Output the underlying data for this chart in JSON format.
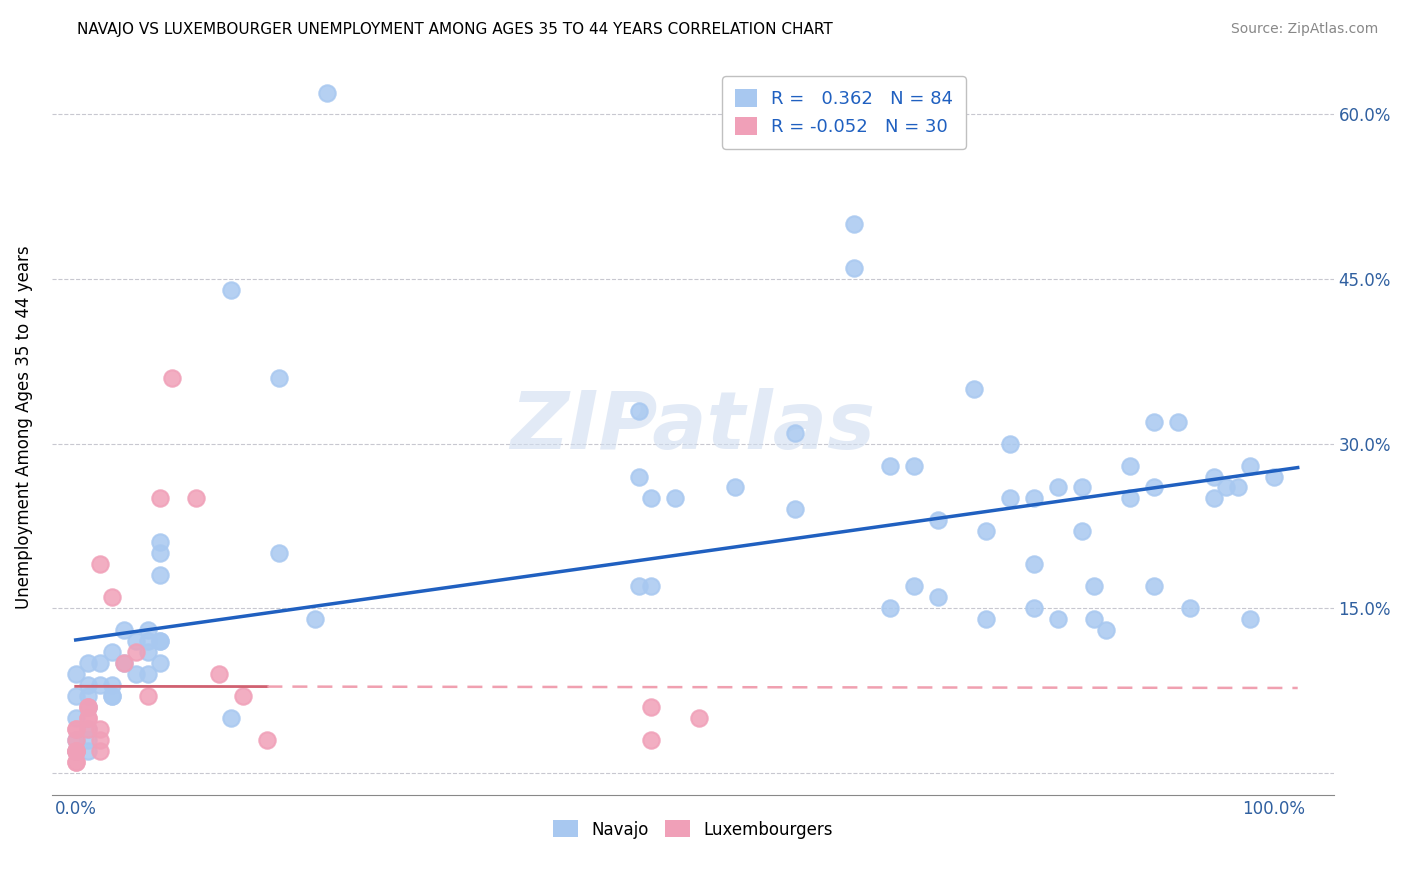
{
  "title": "NAVAJO VS LUXEMBOURGER UNEMPLOYMENT AMONG AGES 35 TO 44 YEARS CORRELATION CHART",
  "source": "Source: ZipAtlas.com",
  "ylabel": "Unemployment Among Ages 35 to 44 years",
  "xlim": [
    -0.02,
    1.05
  ],
  "ylim": [
    -0.02,
    0.65
  ],
  "xticks": [
    0.0,
    0.2,
    0.4,
    0.6,
    0.8,
    1.0
  ],
  "xtick_labels": [
    "0.0%",
    "",
    "",
    "",
    "",
    "100.0%"
  ],
  "yticks": [
    0.0,
    0.15,
    0.3,
    0.45,
    0.6
  ],
  "ytick_labels_right": [
    "",
    "15.0%",
    "30.0%",
    "45.0%",
    "60.0%"
  ],
  "navajo_R": 0.362,
  "navajo_N": 84,
  "luxembourger_R": -0.052,
  "luxembourger_N": 30,
  "navajo_color": "#a8c8f0",
  "luxembourger_color": "#f0a0b8",
  "navajo_line_color": "#2060c0",
  "luxembourger_line_color_solid": "#d06070",
  "luxembourger_line_color_dash": "#f0a0b0",
  "grid_color": "#c8c8d0",
  "background_color": "#ffffff",
  "legend_edge_color": "#c0c0c0",
  "legend_text_color": "#2060c0",
  "navajo_scatter_x": [
    0.21,
    0.13,
    0.17,
    0.17,
    0.07,
    0.07,
    0.07,
    0.07,
    0.07,
    0.07,
    0.06,
    0.06,
    0.06,
    0.06,
    0.05,
    0.05,
    0.04,
    0.04,
    0.03,
    0.03,
    0.03,
    0.03,
    0.02,
    0.02,
    0.01,
    0.01,
    0.01,
    0.01,
    0.01,
    0.01,
    0.01,
    0.0,
    0.0,
    0.0,
    0.0,
    0.0,
    0.13,
    0.2,
    0.47,
    0.47,
    0.47,
    0.48,
    0.48,
    0.5,
    0.55,
    0.6,
    0.6,
    0.65,
    0.65,
    0.68,
    0.68,
    0.7,
    0.7,
    0.72,
    0.72,
    0.75,
    0.76,
    0.76,
    0.78,
    0.78,
    0.8,
    0.8,
    0.8,
    0.82,
    0.82,
    0.84,
    0.84,
    0.85,
    0.85,
    0.86,
    0.88,
    0.88,
    0.9,
    0.9,
    0.9,
    0.92,
    0.93,
    0.95,
    0.95,
    0.96,
    0.97,
    0.98,
    0.98,
    1.0
  ],
  "navajo_scatter_y": [
    0.62,
    0.44,
    0.36,
    0.2,
    0.21,
    0.2,
    0.18,
    0.12,
    0.12,
    0.1,
    0.13,
    0.12,
    0.11,
    0.09,
    0.12,
    0.09,
    0.13,
    0.1,
    0.11,
    0.08,
    0.07,
    0.07,
    0.1,
    0.08,
    0.1,
    0.08,
    0.07,
    0.06,
    0.04,
    0.03,
    0.02,
    0.09,
    0.07,
    0.05,
    0.03,
    0.02,
    0.05,
    0.14,
    0.33,
    0.27,
    0.17,
    0.25,
    0.17,
    0.25,
    0.26,
    0.31,
    0.24,
    0.5,
    0.46,
    0.15,
    0.28,
    0.28,
    0.17,
    0.16,
    0.23,
    0.35,
    0.14,
    0.22,
    0.3,
    0.25,
    0.25,
    0.19,
    0.15,
    0.26,
    0.14,
    0.26,
    0.22,
    0.17,
    0.14,
    0.13,
    0.28,
    0.25,
    0.32,
    0.26,
    0.17,
    0.32,
    0.15,
    0.27,
    0.25,
    0.26,
    0.26,
    0.28,
    0.14,
    0.27
  ],
  "luxembourger_scatter_x": [
    0.0,
    0.0,
    0.0,
    0.0,
    0.0,
    0.0,
    0.0,
    0.0,
    0.01,
    0.01,
    0.01,
    0.01,
    0.01,
    0.02,
    0.02,
    0.02,
    0.02,
    0.03,
    0.04,
    0.05,
    0.06,
    0.07,
    0.08,
    0.1,
    0.12,
    0.14,
    0.16,
    0.48,
    0.48,
    0.52
  ],
  "luxembourger_scatter_y": [
    0.01,
    0.01,
    0.02,
    0.02,
    0.02,
    0.03,
    0.04,
    0.04,
    0.04,
    0.05,
    0.05,
    0.06,
    0.06,
    0.02,
    0.03,
    0.04,
    0.19,
    0.16,
    0.1,
    0.11,
    0.07,
    0.25,
    0.36,
    0.25,
    0.09,
    0.07,
    0.03,
    0.06,
    0.03,
    0.05
  ]
}
